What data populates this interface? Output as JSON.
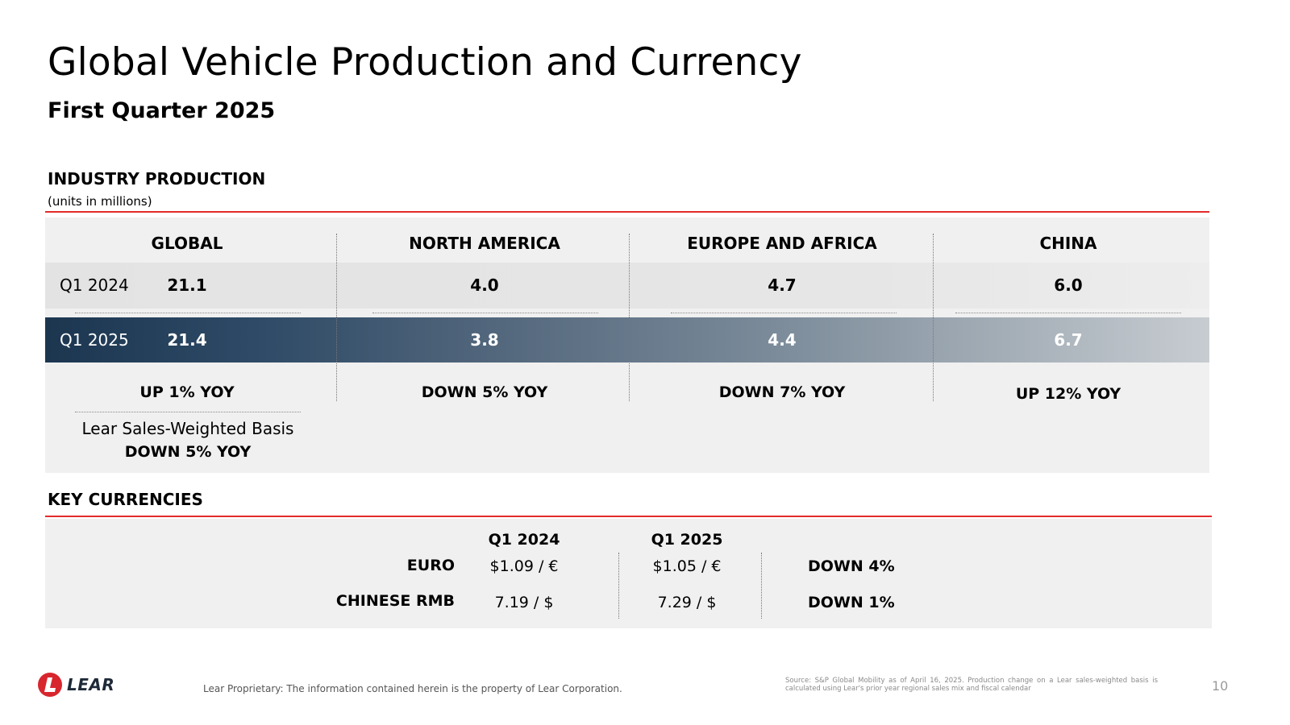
{
  "header": {
    "title": "Global Vehicle Production and Currency",
    "subtitle": "First Quarter 2025"
  },
  "industry_production": {
    "heading": "INDUSTRY PRODUCTION",
    "units_note": "(units in millions)",
    "columns": [
      "GLOBAL",
      "NORTH AMERICA",
      "EUROPE AND AFRICA",
      "CHINA"
    ],
    "rows": [
      {
        "label": "Q1 2024",
        "values": [
          "21.1",
          "4.0",
          "4.7",
          "6.0"
        ]
      },
      {
        "label": "Q1 2025",
        "values": [
          "21.4",
          "3.8",
          "4.4",
          "6.7"
        ]
      }
    ],
    "yoy": [
      "UP 1% YOY",
      "DOWN 5% YOY",
      "DOWN 7% YOY",
      "UP 12% YOY"
    ],
    "lear_basis": {
      "label": "Lear Sales-Weighted Basis",
      "change": "DOWN 5% YOY"
    }
  },
  "key_currencies": {
    "heading": "KEY CURRENCIES",
    "period_headers": [
      "Q1 2024",
      "Q1 2025"
    ],
    "rows": [
      {
        "name": "EURO",
        "q1_2024": "$1.09 / €",
        "q1_2025": "$1.05 / €",
        "change": "DOWN 4%"
      },
      {
        "name": "CHINESE RMB",
        "q1_2024": "7.19 / $",
        "q1_2025": "7.29 / $",
        "change": "DOWN 1%"
      }
    ]
  },
  "footer": {
    "logo_text": "LEAR",
    "proprietary": "Lear Proprietary: The information contained herein is the property of Lear Corporation.",
    "source": "Source: S&P Global Mobility as of April 16, 2025. Production change on a Lear sales-weighted basis is calculated using Lear's prior year regional sales mix and fiscal calendar",
    "page_number": "10"
  },
  "colors": {
    "accent_red": "#e32b2b",
    "logo_red": "#d8262e",
    "navy": "#1c3650",
    "panel_gray": "#f0f0f0"
  }
}
